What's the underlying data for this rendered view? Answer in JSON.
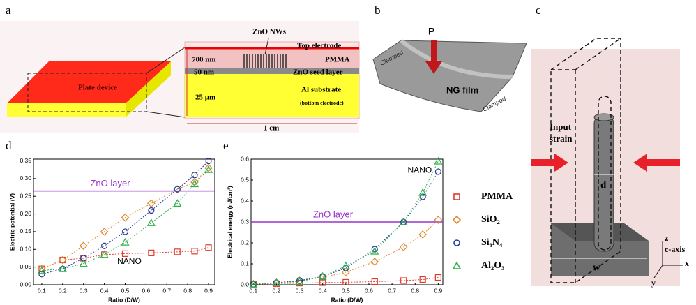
{
  "panels": {
    "a": {
      "label": "a",
      "plate": "Plate device",
      "nws": "ZnO NWs",
      "top_electrode": "Top electrode",
      "pmma_thickness": "700 nm",
      "pmma": "PMMA",
      "seed_thickness": "50 nm",
      "seed": "ZnO seed layer",
      "substrate_thickness": "25 μm",
      "substrate": "Al substrate",
      "bottom": "(bottom electrode)",
      "width": "1 cm"
    },
    "b": {
      "label": "b",
      "force": "P",
      "clamped_left": "Clamped",
      "film": "NG film",
      "clamped_right": "Clamped"
    },
    "c": {
      "label": "c",
      "strain_line1": "Input",
      "strain_line2": "strain",
      "d": "d",
      "w": "w",
      "z": "z",
      "c_axis": "c-axis",
      "x": "x",
      "y": "y"
    }
  },
  "chart_data": [
    {
      "type": "scatter",
      "panel": "d",
      "x_label": "Ratio (D/W)",
      "y_label": "Electric potential (V)",
      "annotation": "NANO",
      "reference_line": {
        "label": "ZnO layer",
        "value": 0.265,
        "color": "#9933cc"
      },
      "x": [
        0.1,
        0.2,
        0.3,
        0.4,
        0.5,
        0.625,
        0.75,
        0.833,
        0.9
      ],
      "xlim": [
        0.06,
        0.93
      ],
      "ylim": [
        0,
        0.355
      ],
      "xticks": [
        0.1,
        0.2,
        0.3,
        0.4,
        0.5,
        0.6,
        0.7,
        0.8,
        0.9
      ],
      "yticks": [
        {
          "value": 0,
          "label": "0.00"
        },
        0.05,
        {
          "value": 0.1,
          "label": "0.10"
        },
        0.15,
        {
          "value": 0.2,
          "label": "0.20"
        },
        0.25,
        {
          "value": 0.3,
          "label": "0.30"
        },
        0.35
      ],
      "series": [
        {
          "name": "PMMA",
          "color": "#e03a2a",
          "marker": "square",
          "values": [
            0.045,
            0.07,
            0.075,
            0.085,
            0.088,
            0.09,
            0.093,
            0.095,
            0.105
          ]
        },
        {
          "name": "SiO₂",
          "color": "#e0882e",
          "marker": "diamond",
          "values": [
            0.045,
            0.07,
            0.11,
            0.15,
            0.19,
            0.23,
            0.27,
            0.29,
            0.33
          ]
        },
        {
          "name": "Si₃N₄",
          "color": "#1f3a93",
          "marker": "circle",
          "values": [
            0.03,
            0.045,
            0.075,
            0.11,
            0.15,
            0.21,
            0.27,
            0.31,
            0.35
          ]
        },
        {
          "name": "Al₂O₃",
          "color": "#2fb04a",
          "marker": "triangle",
          "values": [
            0.04,
            0.045,
            0.06,
            0.085,
            0.12,
            0.175,
            0.23,
            0.285,
            0.325
          ]
        }
      ]
    },
    {
      "type": "scatter",
      "panel": "e",
      "x_label": "Ratio (D/W)",
      "y_label": "Electrical energy (nJ/cm³)",
      "annotation": "NANO",
      "reference_line": {
        "label": "ZnO layer",
        "value": 0.3,
        "color": "#9933cc"
      },
      "x": [
        0.1,
        0.2,
        0.3,
        0.4,
        0.5,
        0.625,
        0.75,
        0.833,
        0.9
      ],
      "xlim": [
        0.09,
        0.92
      ],
      "ylim": [
        0,
        0.6
      ],
      "xticks": [
        0.1,
        0.2,
        0.3,
        0.4,
        0.5,
        0.6,
        0.7,
        0.8,
        0.9
      ],
      "yticks": [
        {
          "value": 0,
          "label": "0.0"
        },
        0.1,
        0.2,
        0.3,
        0.4,
        0.5,
        0.6
      ],
      "series": [
        {
          "color": "#e03a2a",
          "marker": "square",
          "values": [
            0.003,
            0.005,
            0.008,
            0.01,
            0.012,
            0.015,
            0.02,
            0.025,
            0.035
          ]
        },
        {
          "color": "#e0882e",
          "marker": "diamond",
          "values": [
            0.003,
            0.01,
            0.02,
            0.035,
            0.06,
            0.11,
            0.18,
            0.24,
            0.31
          ]
        },
        {
          "color": "#1f3a93",
          "marker": "circle",
          "values": [
            0.003,
            0.01,
            0.02,
            0.04,
            0.08,
            0.17,
            0.3,
            0.42,
            0.54
          ]
        },
        {
          "color": "#2fb04a",
          "marker": "triangle",
          "values": [
            0.003,
            0.01,
            0.015,
            0.04,
            0.09,
            0.16,
            0.3,
            0.44,
            0.59
          ]
        }
      ]
    }
  ]
}
